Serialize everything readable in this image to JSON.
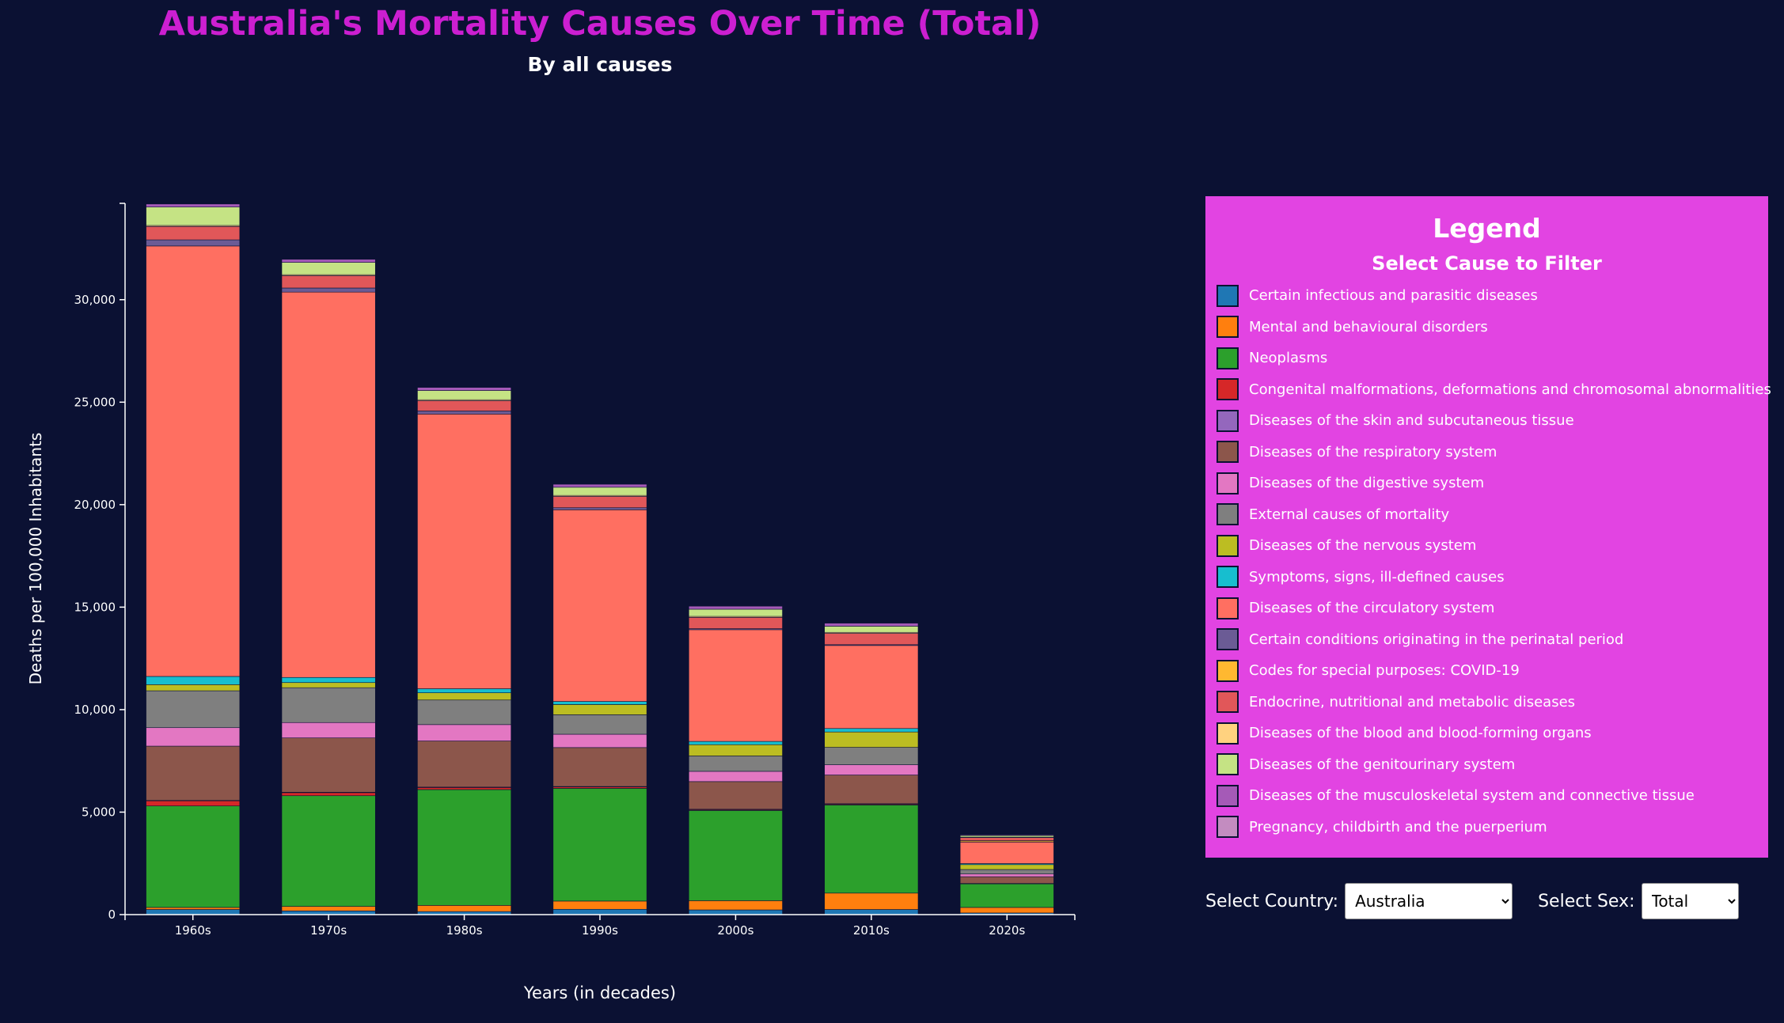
{
  "title": "Australia's Mortality Causes Over Time (Total)",
  "subtitle": "By all causes",
  "legend": {
    "title": "Legend",
    "subtitle": "Select Cause to Filter"
  },
  "controls": {
    "country_label": "Select Country:",
    "country_value": "Australia",
    "sex_label": "Select Sex:",
    "sex_value": "Total"
  },
  "chart_data": {
    "type": "bar",
    "stacked": true,
    "xlabel": "Years (in decades)",
    "ylabel": "Deaths per 100,000 Inhabitants",
    "ylim": [
      0,
      34700
    ],
    "yticks": [
      0,
      5000,
      10000,
      15000,
      20000,
      25000,
      30000
    ],
    "ytick_labels": [
      "0",
      "5,000",
      "10,000",
      "15,000",
      "20,000",
      "25,000",
      "30,000"
    ],
    "categories": [
      "1960s",
      "1970s",
      "1980s",
      "1990s",
      "2000s",
      "2010s",
      "2020s"
    ],
    "series": [
      {
        "name": "Certain infectious and parasitic diseases",
        "color": "#1f77b4",
        "values": [
          250,
          180,
          150,
          260,
          230,
          250,
          80
        ]
      },
      {
        "name": "Mental and behavioural disorders",
        "color": "#ff7f0e",
        "values": [
          100,
          220,
          300,
          400,
          450,
          800,
          270
        ]
      },
      {
        "name": "Neoplasms",
        "color": "#2ca02c",
        "values": [
          4950,
          5400,
          5650,
          5500,
          4400,
          4300,
          1150
        ]
      },
      {
        "name": "Congenital malformations, deformations and chromosomal abnormalities",
        "color": "#d62728",
        "values": [
          250,
          150,
          100,
          70,
          40,
          40,
          10
        ]
      },
      {
        "name": "Diseases of the skin and subcutaneous tissue",
        "color": "#9467bd",
        "values": [
          20,
          20,
          20,
          20,
          20,
          20,
          10
        ]
      },
      {
        "name": "Diseases of the respiratory system",
        "color": "#8c564b",
        "values": [
          2650,
          2650,
          2250,
          1900,
          1350,
          1400,
          330
        ]
      },
      {
        "name": "Diseases of the digestive system",
        "color": "#e377c2",
        "values": [
          900,
          750,
          800,
          650,
          500,
          500,
          130
        ]
      },
      {
        "name": "External causes of mortality",
        "color": "#7f7f7f",
        "values": [
          1800,
          1700,
          1200,
          950,
          750,
          850,
          220
        ]
      },
      {
        "name": "Diseases of the nervous system",
        "color": "#bcbd22",
        "values": [
          300,
          250,
          350,
          500,
          550,
          750,
          240
        ]
      },
      {
        "name": "Symptoms, signs, ill-defined causes",
        "color": "#17becf",
        "values": [
          400,
          250,
          200,
          150,
          160,
          170,
          50
        ]
      },
      {
        "name": "Diseases of the circulatory system",
        "color": "#ff6f61",
        "values": [
          21000,
          18800,
          13400,
          9350,
          5450,
          4050,
          1050
        ]
      },
      {
        "name": "Certain conditions originating in the perinatal period",
        "color": "#6b5b95",
        "values": [
          300,
          200,
          150,
          100,
          50,
          40,
          10
        ]
      },
      {
        "name": "Codes for special purposes: COVID-19",
        "color": "#ffb830",
        "values": [
          0,
          0,
          0,
          0,
          0,
          0,
          60
        ]
      },
      {
        "name": "Endocrine, nutritional and metabolic diseases",
        "color": "#e15759",
        "values": [
          650,
          600,
          500,
          550,
          550,
          550,
          150
        ]
      },
      {
        "name": "Diseases of the blood and blood-forming organs",
        "color": "#ffd27f",
        "values": [
          50,
          50,
          50,
          50,
          50,
          50,
          20
        ]
      },
      {
        "name": "Diseases of the genitourinary system",
        "color": "#c5e384",
        "values": [
          900,
          600,
          450,
          400,
          350,
          300,
          80
        ]
      },
      {
        "name": "Diseases of the musculoskeletal system and connective tissue",
        "color": "#a55ab7",
        "values": [
          150,
          150,
          150,
          150,
          150,
          150,
          40
        ]
      },
      {
        "name": "Pregnancy, childbirth and the puerperium",
        "color": "#c38cc0",
        "values": [
          20,
          10,
          5,
          5,
          5,
          5,
          2
        ]
      }
    ]
  }
}
